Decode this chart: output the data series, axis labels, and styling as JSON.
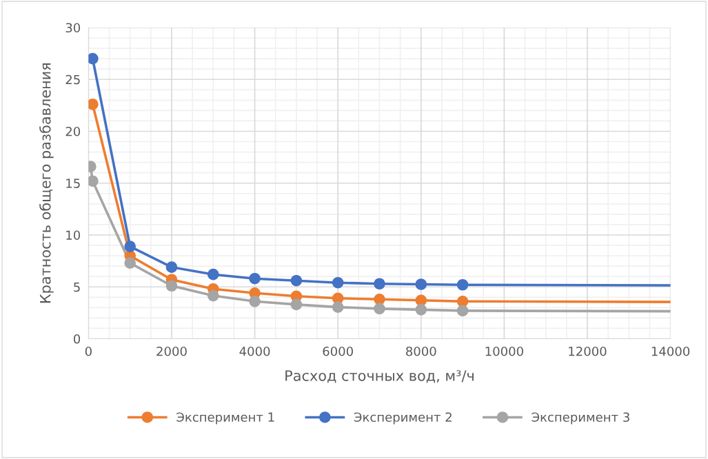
{
  "chart_data": {
    "type": "line",
    "xlabel": "Расход сточных вод, м³/ч",
    "ylabel": "Кратность общего разбавления",
    "xlim": [
      0,
      14000
    ],
    "xticks": [
      0,
      2000,
      4000,
      6000,
      8000,
      10000,
      12000,
      14000
    ],
    "ylim": [
      0,
      30
    ],
    "yticks": [
      0,
      5,
      10,
      15,
      20,
      25,
      30
    ],
    "grid": true,
    "legend": "bottom",
    "marker": "circle",
    "line_style": "solid",
    "series": [
      {
        "name": "Эксперимент 1",
        "color": "#ed7d31",
        "x": [
          100,
          1000,
          2000,
          3000,
          4000,
          5000,
          6000,
          7000,
          8000,
          9000
        ],
        "values": [
          22.6,
          8.0,
          5.7,
          4.8,
          4.4,
          4.1,
          3.9,
          3.8,
          3.7,
          3.6
        ]
      },
      {
        "name": "Эксперимент 2",
        "color": "#4472c4",
        "x": [
          100,
          1000,
          2000,
          3000,
          4000,
          5000,
          6000,
          7000,
          8000,
          9000
        ],
        "values": [
          27.0,
          8.9,
          6.9,
          6.2,
          5.8,
          5.6,
          5.4,
          5.3,
          5.25,
          5.2
        ]
      },
      {
        "name": "Эксперимент 3",
        "color": "#a5a5a5",
        "x": [
          50,
          100,
          1000,
          2000,
          3000,
          4000,
          5000,
          6000,
          7000,
          8000,
          9000
        ],
        "values": [
          16.6,
          15.2,
          7.3,
          5.1,
          4.15,
          3.6,
          3.3,
          3.05,
          2.9,
          2.8,
          2.7
        ]
      },
      {
        "type": "line",
        "color": "#ed7d31",
        "marker": "none",
        "x": [
          9000,
          14000
        ],
        "values": [
          3.6,
          3.55
        ]
      },
      {
        "type": "line",
        "color": "#4472c4",
        "marker": "none",
        "x": [
          9000,
          14000
        ],
        "values": [
          5.2,
          5.15
        ]
      },
      {
        "type": "line",
        "color": "#a5a5a5",
        "marker": "none",
        "x": [
          9000,
          14000
        ],
        "values": [
          2.7,
          2.65
        ]
      }
    ]
  }
}
